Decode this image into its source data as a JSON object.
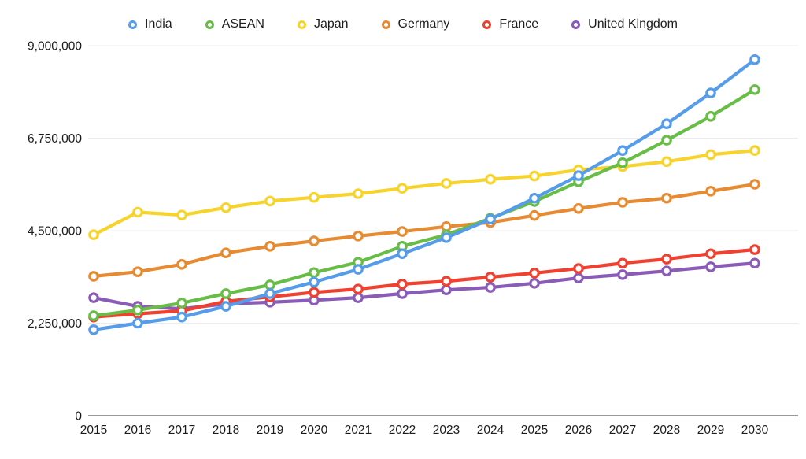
{
  "chart_data": {
    "type": "line",
    "title": "",
    "xlabel": "",
    "ylabel": "",
    "x": [
      2015,
      2016,
      2017,
      2018,
      2019,
      2020,
      2021,
      2022,
      2023,
      2024,
      2025,
      2026,
      2027,
      2028,
      2029,
      2030
    ],
    "series": [
      {
        "name": "India",
        "color": "#569CE8",
        "values": [
          2090000,
          2250000,
          2400000,
          2660000,
          2970000,
          3250000,
          3560000,
          3940000,
          4330000,
          4780000,
          5290000,
          5840000,
          6450000,
          7100000,
          7850000,
          8660000
        ]
      },
      {
        "name": "ASEAN",
        "color": "#67BD46",
        "values": [
          2430000,
          2570000,
          2740000,
          2970000,
          3180000,
          3480000,
          3730000,
          4120000,
          4400000,
          4800000,
          5210000,
          5690000,
          6150000,
          6700000,
          7280000,
          7930000
        ]
      },
      {
        "name": "Japan",
        "color": "#F7D42D",
        "values": [
          4400000,
          4950000,
          4880000,
          5060000,
          5220000,
          5310000,
          5400000,
          5530000,
          5650000,
          5750000,
          5830000,
          5980000,
          6060000,
          6180000,
          6350000,
          6450000
        ]
      },
      {
        "name": "Germany",
        "color": "#E78B33",
        "values": [
          3390000,
          3500000,
          3680000,
          3960000,
          4120000,
          4250000,
          4370000,
          4480000,
          4600000,
          4700000,
          4870000,
          5040000,
          5190000,
          5290000,
          5460000,
          5630000
        ]
      },
      {
        "name": "France",
        "color": "#F04130",
        "values": [
          2400000,
          2480000,
          2550000,
          2780000,
          2890000,
          3000000,
          3080000,
          3200000,
          3270000,
          3370000,
          3470000,
          3580000,
          3710000,
          3810000,
          3940000,
          4040000
        ]
      },
      {
        "name": "United Kingdom",
        "color": "#8A5CB8",
        "values": [
          2870000,
          2660000,
          2600000,
          2720000,
          2760000,
          2810000,
          2870000,
          2970000,
          3060000,
          3120000,
          3220000,
          3350000,
          3430000,
          3520000,
          3620000,
          3710000
        ]
      }
    ],
    "ylim": [
      0,
      9000000
    ],
    "yticks": [
      0,
      2250000,
      4500000,
      6750000,
      9000000
    ],
    "ytick_labels": [
      "0",
      "2,250,000",
      "4,500,000",
      "6,750,000",
      "9,000,000"
    ],
    "legend_position": "top-center",
    "grid": "horizontal-light",
    "marker": "open-circle",
    "colors": {
      "grid_line": "#ececec",
      "zero_axis_line": "#999999",
      "tick_text": "#1c1c1c",
      "background": "#ffffff"
    }
  }
}
